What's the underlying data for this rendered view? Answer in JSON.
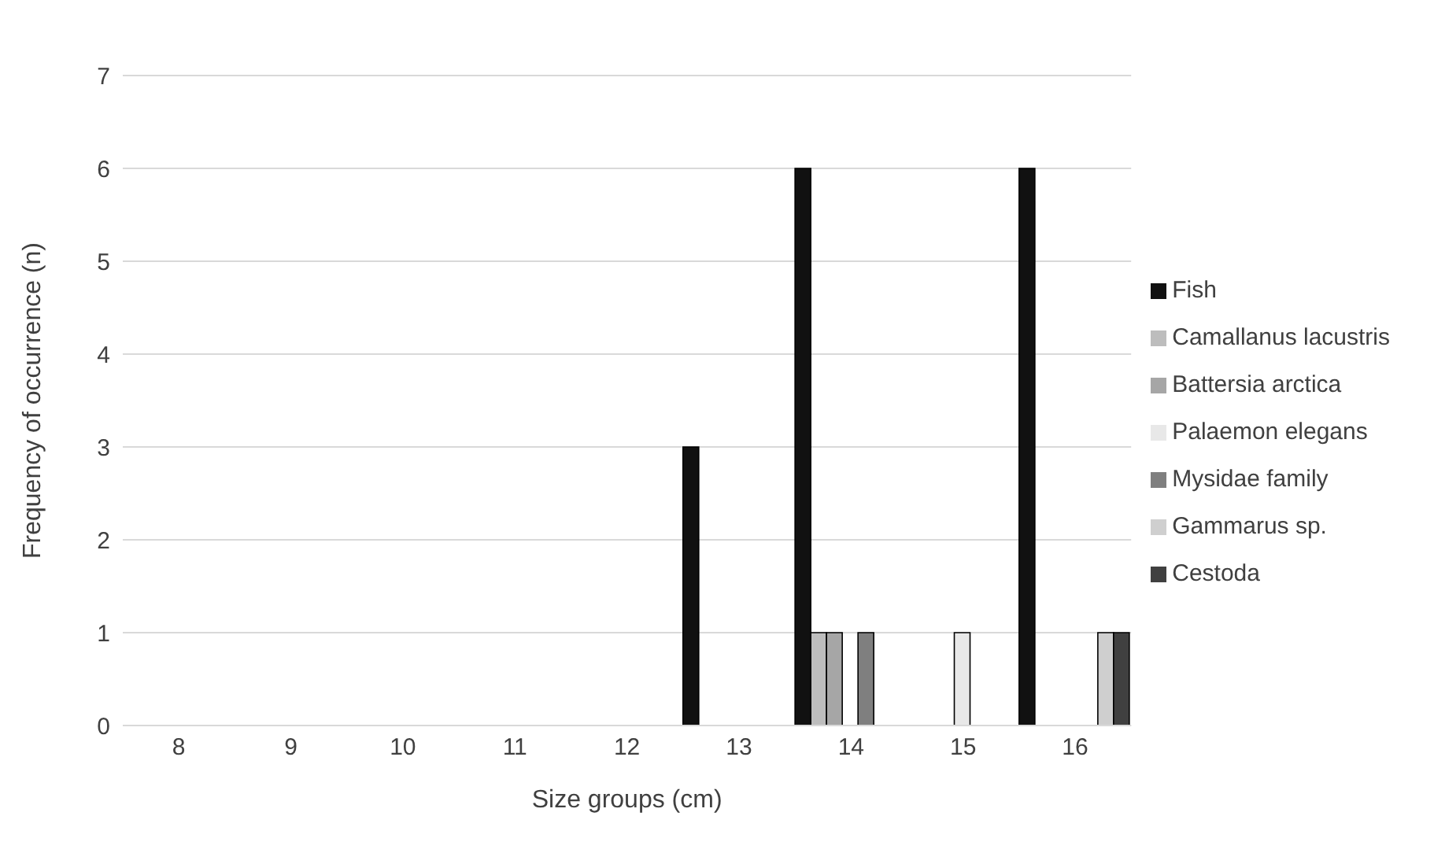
{
  "chart_data": {
    "type": "bar",
    "xlabel": "Size groups (cm)",
    "ylabel": "Frequency of occurrence (n)",
    "categories": [
      "8",
      "9",
      "10",
      "11",
      "12",
      "13",
      "14",
      "15",
      "16"
    ],
    "series": [
      {
        "name": "Fish",
        "color": "#111111",
        "values": [
          0,
          0,
          0,
          0,
          0,
          3,
          6,
          0,
          6
        ]
      },
      {
        "name": "Camallanus lacustris",
        "color": "#bdbdbd",
        "values": [
          0,
          0,
          0,
          0,
          0,
          0,
          1,
          0,
          0
        ]
      },
      {
        "name": "Battersia arctica",
        "color": "#a6a6a6",
        "values": [
          0,
          0,
          0,
          0,
          0,
          0,
          1,
          0,
          0
        ]
      },
      {
        "name": "Palaemon elegans",
        "color": "#e8e8e8",
        "values": [
          0,
          0,
          0,
          0,
          0,
          0,
          0,
          1,
          0
        ]
      },
      {
        "name": "Mysidae family",
        "color": "#7f7f7f",
        "values": [
          0,
          0,
          0,
          0,
          0,
          0,
          1,
          0,
          0
        ]
      },
      {
        "name": "Gammarus sp.",
        "color": "#cfcfcf",
        "values": [
          0,
          0,
          0,
          0,
          0,
          0,
          0,
          0,
          1
        ]
      },
      {
        "name": "Cestoda",
        "color": "#404040",
        "values": [
          0,
          0,
          0,
          0,
          0,
          0,
          0,
          0,
          1
        ]
      }
    ],
    "ylim": [
      0,
      7
    ],
    "yticks": [
      0,
      1,
      2,
      3,
      4,
      5,
      6,
      7
    ],
    "grid": "y",
    "legend": "right"
  }
}
